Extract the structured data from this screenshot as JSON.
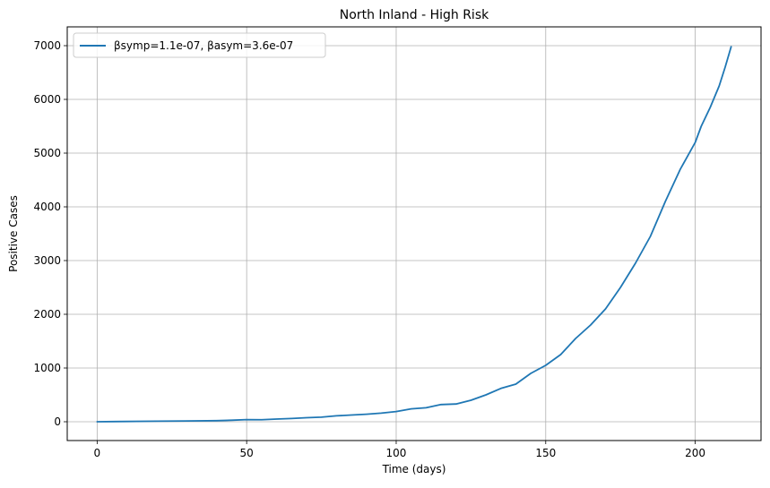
{
  "chart_data": {
    "type": "line",
    "title": "North Inland - High Risk",
    "xlabel": "Time (days)",
    "ylabel": "Positive Cases",
    "xlim": [
      -10,
      222
    ],
    "ylim": [
      -350,
      7350
    ],
    "xticks": [
      0,
      50,
      100,
      150,
      200
    ],
    "yticks": [
      0,
      1000,
      2000,
      3000,
      4000,
      5000,
      6000,
      7000
    ],
    "grid": true,
    "legend_position": "top-left",
    "series": [
      {
        "name": "βsymp=1.1e-07, βasym=3.6e-07",
        "color": "#1f77b4",
        "x": [
          0,
          10,
          20,
          30,
          40,
          45,
          50,
          55,
          60,
          65,
          70,
          75,
          80,
          85,
          90,
          95,
          100,
          105,
          110,
          115,
          120,
          125,
          130,
          135,
          140,
          145,
          150,
          155,
          160,
          165,
          170,
          175,
          180,
          185,
          190,
          195,
          200,
          202,
          205,
          208,
          210,
          212
        ],
        "y": [
          0,
          5,
          10,
          15,
          20,
          28,
          40,
          38,
          50,
          60,
          75,
          85,
          110,
          125,
          140,
          160,
          190,
          240,
          260,
          320,
          330,
          400,
          500,
          620,
          700,
          900,
          1050,
          1250,
          1550,
          1800,
          2100,
          2500,
          2950,
          3450,
          4100,
          4700,
          5200,
          5500,
          5850,
          6250,
          6600,
          6980
        ]
      }
    ]
  }
}
